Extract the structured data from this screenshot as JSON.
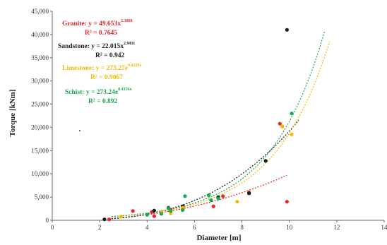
{
  "chart_data": {
    "type": "scatter",
    "xlabel": "Diameter [m]",
    "ylabel": "Torque [kNm]",
    "xlim": [
      0,
      14
    ],
    "ylim": [
      0,
      45000
    ],
    "x_ticks": [
      "0",
      "2",
      "4",
      "6",
      "8",
      "10",
      "12",
      "14"
    ],
    "x_tick_values": [
      0,
      2,
      4,
      6,
      8,
      10,
      12,
      14
    ],
    "y_ticks": [
      "0",
      "5,000",
      "10,000",
      "15,000",
      "20,000",
      "25,000",
      "30,000",
      "35,000",
      "40,000",
      "45,000"
    ],
    "y_tick_values": [
      0,
      5000,
      10000,
      15000,
      20000,
      25000,
      30000,
      35000,
      40000,
      45000
    ],
    "grid": false,
    "series": [
      {
        "name": "Granite",
        "color": "#e8262b",
        "equation": "y = 49.653x",
        "exponent": "2.3008",
        "r2": "R² = 0.7645",
        "fit": {
          "kind": "power",
          "a": 49.653,
          "b": 2.3008,
          "x_range": [
            2.5,
            9.9
          ]
        },
        "points": [
          [
            2.4,
            200
          ],
          [
            3.4,
            2000
          ],
          [
            4.2,
            1800
          ],
          [
            4.3,
            900
          ],
          [
            5.0,
            2300
          ],
          [
            5.5,
            2400
          ],
          [
            6.8,
            3000
          ],
          [
            7.2,
            5200
          ],
          [
            8.3,
            6000
          ],
          [
            9.6,
            20800
          ],
          [
            9.9,
            4000
          ]
        ]
      },
      {
        "name": "Sandstone",
        "color": "#1a1a1a",
        "equation": "y = 22.015x",
        "exponent": "2.9411",
        "r2": "R² = 0.942",
        "fit": {
          "kind": "power",
          "a": 22.015,
          "b": 2.9411,
          "x_range": [
            2.5,
            10.4
          ]
        },
        "points": [
          [
            2.2,
            200
          ],
          [
            4.3,
            2100
          ],
          [
            4.9,
            2700
          ],
          [
            5.5,
            3000
          ],
          [
            7.0,
            5000
          ],
          [
            8.3,
            5800
          ],
          [
            9.0,
            12800
          ],
          [
            9.9,
            41000
          ]
        ]
      },
      {
        "name": "Limestone",
        "color": "#f5b800",
        "equation": "y = 273.27e",
        "exponent": "0.4229x",
        "r2": "R² = 0.9067",
        "fit": {
          "kind": "exponential",
          "a": 273.27,
          "b": 0.4229,
          "x_range": [
            2.5,
            11.7
          ]
        },
        "points": [
          [
            2.9,
            800
          ],
          [
            4.0,
            1200
          ],
          [
            4.6,
            1800
          ],
          [
            5.0,
            1500
          ],
          [
            5.5,
            2700
          ],
          [
            7.8,
            4000
          ],
          [
            9.7,
            20200
          ],
          [
            10.1,
            18500
          ]
        ]
      },
      {
        "name": "Schist",
        "color": "#18a84e",
        "equation": "y = 273.24e",
        "exponent": "0.4356x",
        "r2": "R² = 0.892",
        "fit": {
          "kind": "exponential",
          "a": 273.24,
          "b": 0.4356,
          "x_range": [
            2.5,
            11.5
          ]
        },
        "points": [
          [
            4.0,
            1200
          ],
          [
            4.6,
            1400
          ],
          [
            4.9,
            2600
          ],
          [
            5.0,
            2000
          ],
          [
            5.5,
            2200
          ],
          [
            5.6,
            5200
          ],
          [
            6.6,
            5400
          ],
          [
            6.7,
            4300
          ],
          [
            7.0,
            4700
          ],
          [
            10.1,
            23000
          ]
        ]
      }
    ]
  }
}
